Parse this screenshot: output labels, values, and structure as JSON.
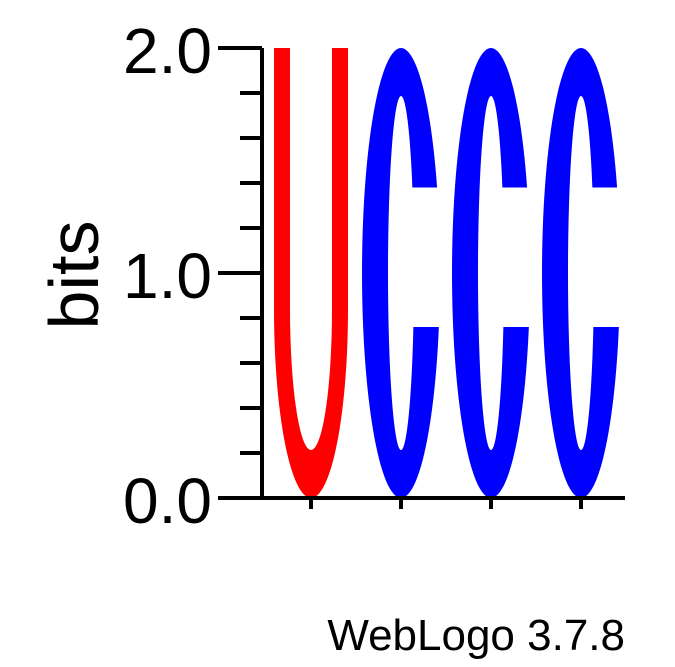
{
  "chart_data": {
    "type": "sequence-logo",
    "ylabel": "bits",
    "ylim": [
      0,
      2.0
    ],
    "yticks": [
      "0.0",
      "1.0",
      "2.0"
    ],
    "positions": [
      1,
      2,
      3,
      4
    ],
    "stacks": [
      [
        {
          "letter": "U",
          "bits": 2.0,
          "color": "#ff0000"
        }
      ],
      [
        {
          "letter": "C",
          "bits": 2.0,
          "color": "#0000ff"
        }
      ],
      [
        {
          "letter": "C",
          "bits": 2.0,
          "color": "#0000ff"
        }
      ],
      [
        {
          "letter": "C",
          "bits": 2.0,
          "color": "#0000ff"
        }
      ]
    ]
  },
  "footer": {
    "credit": "WebLogo 3.7.8"
  }
}
